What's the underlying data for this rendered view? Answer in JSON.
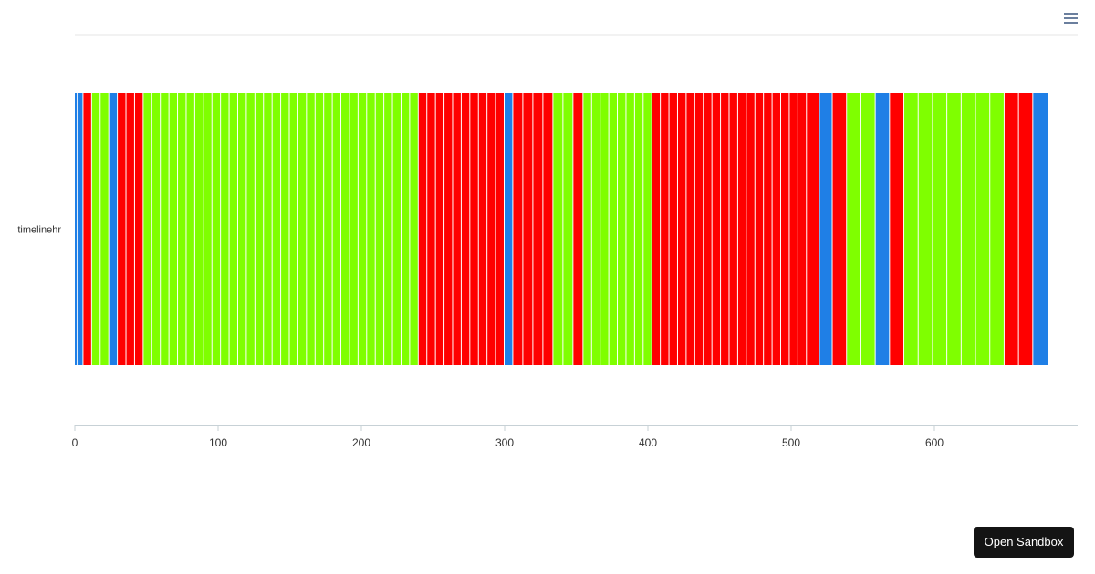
{
  "chart_data": {
    "type": "bar",
    "orientation": "horizontal",
    "stacked": true,
    "categories": [
      "timelinehr"
    ],
    "xlim": [
      0,
      700
    ],
    "x_ticks": [
      0,
      100,
      200,
      300,
      400,
      500,
      600
    ],
    "grid": false,
    "legend": "none",
    "colors": {
      "A": "#1f7fe6",
      "B": "#ff0000",
      "C": "#7fff00"
    },
    "segments": [
      {
        "start": 0,
        "end": 2,
        "c": "A"
      },
      {
        "start": 2,
        "end": 6,
        "c": "A"
      },
      {
        "start": 6,
        "end": 12,
        "c": "B"
      },
      {
        "start": 12,
        "end": 18,
        "c": "C"
      },
      {
        "start": 18,
        "end": 24,
        "c": "C"
      },
      {
        "start": 24,
        "end": 30,
        "c": "A"
      },
      {
        "start": 30,
        "end": 36,
        "c": "B"
      },
      {
        "start": 36,
        "end": 42,
        "c": "B"
      },
      {
        "start": 42,
        "end": 48,
        "c": "B"
      },
      {
        "start": 48,
        "end": 54,
        "c": "C"
      },
      {
        "start": 54,
        "end": 60,
        "c": "C"
      },
      {
        "start": 60,
        "end": 66,
        "c": "C"
      },
      {
        "start": 66,
        "end": 72,
        "c": "C"
      },
      {
        "start": 72,
        "end": 78,
        "c": "C"
      },
      {
        "start": 78,
        "end": 84,
        "c": "C"
      },
      {
        "start": 84,
        "end": 90,
        "c": "C"
      },
      {
        "start": 90,
        "end": 96,
        "c": "C"
      },
      {
        "start": 96,
        "end": 102,
        "c": "C"
      },
      {
        "start": 102,
        "end": 108,
        "c": "C"
      },
      {
        "start": 108,
        "end": 114,
        "c": "C"
      },
      {
        "start": 114,
        "end": 120,
        "c": "C"
      },
      {
        "start": 120,
        "end": 126,
        "c": "C"
      },
      {
        "start": 126,
        "end": 132,
        "c": "C"
      },
      {
        "start": 132,
        "end": 138,
        "c": "C"
      },
      {
        "start": 138,
        "end": 144,
        "c": "C"
      },
      {
        "start": 144,
        "end": 150,
        "c": "C"
      },
      {
        "start": 150,
        "end": 156,
        "c": "C"
      },
      {
        "start": 156,
        "end": 162,
        "c": "C"
      },
      {
        "start": 162,
        "end": 168,
        "c": "C"
      },
      {
        "start": 168,
        "end": 174,
        "c": "C"
      },
      {
        "start": 174,
        "end": 180,
        "c": "C"
      },
      {
        "start": 180,
        "end": 186,
        "c": "C"
      },
      {
        "start": 186,
        "end": 192,
        "c": "C"
      },
      {
        "start": 192,
        "end": 198,
        "c": "C"
      },
      {
        "start": 198,
        "end": 204,
        "c": "C"
      },
      {
        "start": 204,
        "end": 210,
        "c": "C"
      },
      {
        "start": 210,
        "end": 216,
        "c": "C"
      },
      {
        "start": 216,
        "end": 222,
        "c": "C"
      },
      {
        "start": 222,
        "end": 228,
        "c": "C"
      },
      {
        "start": 228,
        "end": 234,
        "c": "C"
      },
      {
        "start": 234,
        "end": 240,
        "c": "C"
      },
      {
        "start": 240,
        "end": 246,
        "c": "B"
      },
      {
        "start": 246,
        "end": 252,
        "c": "B"
      },
      {
        "start": 252,
        "end": 258,
        "c": "B"
      },
      {
        "start": 258,
        "end": 264,
        "c": "B"
      },
      {
        "start": 264,
        "end": 270,
        "c": "B"
      },
      {
        "start": 270,
        "end": 276,
        "c": "B"
      },
      {
        "start": 276,
        "end": 282,
        "c": "B"
      },
      {
        "start": 282,
        "end": 288,
        "c": "B"
      },
      {
        "start": 288,
        "end": 294,
        "c": "B"
      },
      {
        "start": 294,
        "end": 300,
        "c": "B"
      },
      {
        "start": 300,
        "end": 306,
        "c": "A"
      },
      {
        "start": 306,
        "end": 313,
        "c": "B"
      },
      {
        "start": 313,
        "end": 320,
        "c": "B"
      },
      {
        "start": 320,
        "end": 327,
        "c": "B"
      },
      {
        "start": 327,
        "end": 334,
        "c": "B"
      },
      {
        "start": 334,
        "end": 341,
        "c": "C"
      },
      {
        "start": 341,
        "end": 348,
        "c": "C"
      },
      {
        "start": 348,
        "end": 355,
        "c": "B"
      },
      {
        "start": 355,
        "end": 361,
        "c": "C"
      },
      {
        "start": 361,
        "end": 367,
        "c": "C"
      },
      {
        "start": 367,
        "end": 373,
        "c": "C"
      },
      {
        "start": 373,
        "end": 379,
        "c": "C"
      },
      {
        "start": 379,
        "end": 385,
        "c": "C"
      },
      {
        "start": 385,
        "end": 391,
        "c": "C"
      },
      {
        "start": 391,
        "end": 397,
        "c": "C"
      },
      {
        "start": 397,
        "end": 403,
        "c": "C"
      },
      {
        "start": 403,
        "end": 409,
        "c": "B"
      },
      {
        "start": 409,
        "end": 415,
        "c": "B"
      },
      {
        "start": 415,
        "end": 421,
        "c": "B"
      },
      {
        "start": 421,
        "end": 427,
        "c": "B"
      },
      {
        "start": 427,
        "end": 433,
        "c": "B"
      },
      {
        "start": 433,
        "end": 439,
        "c": "B"
      },
      {
        "start": 439,
        "end": 445,
        "c": "B"
      },
      {
        "start": 445,
        "end": 451,
        "c": "B"
      },
      {
        "start": 451,
        "end": 457,
        "c": "B"
      },
      {
        "start": 457,
        "end": 463,
        "c": "B"
      },
      {
        "start": 463,
        "end": 469,
        "c": "B"
      },
      {
        "start": 469,
        "end": 475,
        "c": "B"
      },
      {
        "start": 475,
        "end": 481,
        "c": "B"
      },
      {
        "start": 481,
        "end": 487,
        "c": "B"
      },
      {
        "start": 487,
        "end": 493,
        "c": "B"
      },
      {
        "start": 493,
        "end": 499,
        "c": "B"
      },
      {
        "start": 499,
        "end": 505,
        "c": "B"
      },
      {
        "start": 505,
        "end": 511,
        "c": "B"
      },
      {
        "start": 511,
        "end": 520,
        "c": "B"
      },
      {
        "start": 520,
        "end": 529,
        "c": "A"
      },
      {
        "start": 529,
        "end": 539,
        "c": "B"
      },
      {
        "start": 539,
        "end": 549,
        "c": "C"
      },
      {
        "start": 549,
        "end": 559,
        "c": "C"
      },
      {
        "start": 559,
        "end": 569,
        "c": "A"
      },
      {
        "start": 569,
        "end": 579,
        "c": "B"
      },
      {
        "start": 579,
        "end": 589,
        "c": "C"
      },
      {
        "start": 589,
        "end": 599,
        "c": "C"
      },
      {
        "start": 599,
        "end": 609,
        "c": "C"
      },
      {
        "start": 609,
        "end": 619,
        "c": "C"
      },
      {
        "start": 619,
        "end": 629,
        "c": "C"
      },
      {
        "start": 629,
        "end": 639,
        "c": "C"
      },
      {
        "start": 639,
        "end": 649,
        "c": "C"
      },
      {
        "start": 649,
        "end": 659,
        "c": "B"
      },
      {
        "start": 659,
        "end": 669,
        "c": "B"
      },
      {
        "start": 669,
        "end": 680,
        "c": "A"
      }
    ]
  },
  "toolbar": {
    "menu_icon": "hamburger-menu-icon",
    "sandbox_label": "Open Sandbox"
  }
}
